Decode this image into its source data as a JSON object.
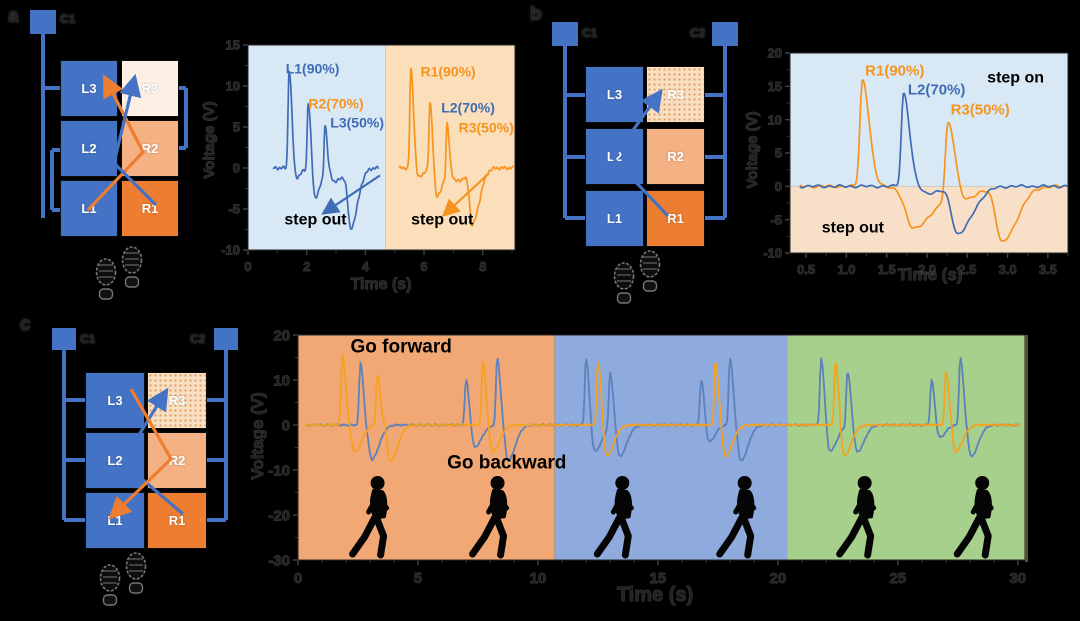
{
  "panels": {
    "a": {
      "label": "a",
      "connectors": [
        {
          "id": "C1",
          "label": "C1"
        }
      ],
      "tiles": [
        {
          "id": "L3",
          "row": 0,
          "col": 0,
          "fill": "blue"
        },
        {
          "id": "R3",
          "row": 0,
          "col": 1,
          "fill": "lightest"
        },
        {
          "id": "L2",
          "row": 1,
          "col": 0,
          "fill": "blue"
        },
        {
          "id": "R2",
          "row": 1,
          "col": 1,
          "fill": "light"
        },
        {
          "id": "L1",
          "row": 2,
          "col": 0,
          "fill": "blue"
        },
        {
          "id": "R1",
          "row": 2,
          "col": 1,
          "fill": "orange"
        }
      ],
      "footprints": true
    },
    "b": {
      "label": "b",
      "connectors": [
        {
          "id": "C1",
          "label": "C1"
        },
        {
          "id": "C2",
          "label": "C2"
        }
      ],
      "tiles": [
        {
          "id": "L3",
          "row": 0,
          "col": 0,
          "fill": "blue"
        },
        {
          "id": "R3",
          "row": 0,
          "col": 1,
          "fill": "dotted"
        },
        {
          "id": "L2",
          "row": 1,
          "col": 0,
          "fill": "blue"
        },
        {
          "id": "R2",
          "row": 1,
          "col": 1,
          "fill": "light"
        },
        {
          "id": "L1",
          "row": 2,
          "col": 0,
          "fill": "blue"
        },
        {
          "id": "R1",
          "row": 2,
          "col": 1,
          "fill": "orange"
        }
      ],
      "footprints": true
    },
    "c": {
      "label": "c",
      "connectors": [
        {
          "id": "C1",
          "label": "C1"
        },
        {
          "id": "C2",
          "label": "C2"
        }
      ],
      "tiles": [
        {
          "id": "L3",
          "row": 0,
          "col": 0,
          "fill": "blue"
        },
        {
          "id": "R3",
          "row": 0,
          "col": 1,
          "fill": "dotted"
        },
        {
          "id": "L2",
          "row": 1,
          "col": 0,
          "fill": "blue"
        },
        {
          "id": "R2",
          "row": 1,
          "col": 1,
          "fill": "light"
        },
        {
          "id": "L1",
          "row": 2,
          "col": 0,
          "fill": "blue"
        },
        {
          "id": "R1",
          "row": 2,
          "col": 1,
          "fill": "orange"
        }
      ],
      "footprints": true
    }
  },
  "colors": {
    "blue": "#4472C4",
    "orange": "#ED7D31",
    "light": "#F4B183",
    "lightest": "#FDEFE4",
    "dotted_bg": "#F8DFC1",
    "trace_blue": "#3E6CB5",
    "trace_orange": "#F6941D",
    "trace_blue_c": "#5C81BC",
    "bg_light_blue": "#D9E8F5",
    "bg_light_orange": "#FBDFBB",
    "bg_peach": "#F8E0C8",
    "bg_c_orange": "#F2A875",
    "bg_c_blue": "#8FAADC",
    "bg_c_green": "#A8D08D"
  },
  "chart_data": [
    {
      "type": "line",
      "title": "",
      "xlabel": "Time (s)",
      "ylabel": "Voltage (V)",
      "xlim": [
        0,
        9.1
      ],
      "ylim": [
        -10,
        15
      ],
      "xticks": [
        0,
        2,
        4,
        6,
        8
      ],
      "xtick_labels": [
        "0",
        "2",
        "4",
        "6",
        "8"
      ],
      "yticks": [
        15,
        10,
        5,
        0,
        -5,
        -10
      ],
      "ytick_labels": [
        "15",
        "10",
        "5",
        "0",
        "-5",
        "-10"
      ],
      "grid": false,
      "legend": "none",
      "regions": [
        {
          "axis": "x",
          "from": 0,
          "to": 4.68,
          "color": "#D9E8F5"
        },
        {
          "axis": "x",
          "from": 4.68,
          "to": 9.1,
          "color": "#FBDFBB"
        }
      ],
      "series": [
        {
          "name": "blue",
          "color": "#3E6CB5",
          "trange": [
            0.85,
            4.45
          ],
          "pulses": [
            [
              1.4,
              12,
              0.05
            ],
            [
              1.62,
              -1.3,
              0.09
            ],
            [
              2.05,
              8,
              0.045
            ],
            [
              2.28,
              -3.6,
              0.1
            ],
            [
              2.62,
              6,
              0.04
            ],
            [
              2.95,
              -1.6,
              0.18
            ],
            [
              3.5,
              -7,
              0.13
            ]
          ]
        },
        {
          "name": "orange",
          "color": "#F6941D",
          "trange": [
            5.15,
            9.05
          ],
          "pulses": [
            [
              5.55,
              12,
              0.05
            ],
            [
              5.78,
              -1.3,
              0.09
            ],
            [
              6.2,
              8,
              0.045
            ],
            [
              6.43,
              -3.6,
              0.1
            ],
            [
              6.78,
              6,
              0.04
            ],
            [
              7.1,
              -1.6,
              0.18
            ],
            [
              7.65,
              -6.5,
              0.13
            ]
          ]
        }
      ],
      "annotations": [
        {
          "text": "L1(90%)",
          "t": 2.2,
          "v": 12.0,
          "color": "#3E6CB5",
          "size": 14
        },
        {
          "text": "R2(70%)",
          "t": 3.0,
          "v": 7.7,
          "color": "#F6941D",
          "size": 14
        },
        {
          "text": "L3(50%)",
          "t": 3.72,
          "v": 5.4,
          "color": "#3E6CB5",
          "size": 14
        },
        {
          "text": "R1(90%)",
          "t": 6.82,
          "v": 11.6,
          "color": "#F6941D",
          "size": 14
        },
        {
          "text": "L2(70%)",
          "t": 7.5,
          "v": 7.2,
          "color": "#3E6CB5",
          "size": 14
        },
        {
          "text": "R3(50%)",
          "t": 8.12,
          "v": 4.8,
          "color": "#F6941D",
          "size": 14
        },
        {
          "text": "step out",
          "t": 2.3,
          "v": -6.4,
          "color": "#000000",
          "size": 16
        },
        {
          "text": "step out",
          "t": 6.62,
          "v": -6.4,
          "color": "#000000",
          "size": 16
        }
      ],
      "arrows": [
        {
          "x1": 4.5,
          "y1": -0.9,
          "x2": 2.62,
          "y2": -5.4,
          "color": "#3E6CB5"
        },
        {
          "x1": 8.2,
          "y1": -0.7,
          "x2": 6.72,
          "y2": -5.6,
          "color": "#F6941D"
        }
      ]
    },
    {
      "type": "line",
      "title": "",
      "xlabel": "Time (s)",
      "ylabel": "Voltage (V)",
      "xlim": [
        0.3,
        3.75
      ],
      "ylim": [
        -10,
        20
      ],
      "xticks": [
        0.5,
        1.0,
        1.5,
        2.0,
        2.5,
        3.0,
        3.5
      ],
      "xtick_labels": [
        "0.5",
        "1.0",
        "1.5",
        "2.0",
        "2.5",
        "3.0",
        "3.5"
      ],
      "yticks": [
        20,
        15,
        10,
        5,
        0,
        -5,
        -10
      ],
      "ytick_labels": [
        "20",
        "15",
        "10",
        "5",
        "0",
        "-5",
        "-10"
      ],
      "grid": false,
      "legend": "none",
      "regions": [
        {
          "axis": "y",
          "from": 0,
          "to": 20,
          "color": "#D9E8F5"
        },
        {
          "axis": "y",
          "from": -10,
          "to": 0,
          "color": "#F8E0C8"
        }
      ],
      "series": [
        {
          "name": "orange",
          "color": "#F6941D",
          "trange": [
            0.42,
            3.74
          ],
          "pulses": [
            [
              1.2,
              16,
              0.045
            ],
            [
              1.83,
              -6.2,
              0.14
            ],
            [
              2.26,
              11,
              0.045
            ],
            [
              2.45,
              -1.8,
              0.1
            ],
            [
              2.93,
              -8.3,
              0.1
            ]
          ]
        },
        {
          "name": "blue",
          "color": "#3E6CB5",
          "trange": [
            0.42,
            3.74
          ],
          "pulses": [
            [
              1.71,
              14,
              0.04
            ],
            [
              2.0,
              -1,
              0.1
            ],
            [
              2.38,
              -7,
              0.1
            ]
          ]
        }
      ],
      "annotations": [
        {
          "text": "R1(90%)",
          "t": 1.6,
          "v": 17.2,
          "color": "#F6941D",
          "size": 15
        },
        {
          "text": "L2(70%)",
          "t": 2.12,
          "v": 14.4,
          "color": "#3E6CB5",
          "size": 15
        },
        {
          "text": "R3(50%)",
          "t": 2.66,
          "v": 11.4,
          "color": "#F6941D",
          "size": 15
        },
        {
          "text": "step on",
          "t": 3.1,
          "v": 16.2,
          "color": "#000000",
          "size": 16
        },
        {
          "text": "step out",
          "t": 1.08,
          "v": -6.3,
          "color": "#000000",
          "size": 16
        }
      ],
      "arrows": []
    },
    {
      "type": "line",
      "title": "",
      "xlabel": "Time (s)",
      "ylabel": "Voltage (V)",
      "xlim": [
        0,
        30.3
      ],
      "ylim": [
        -30,
        20
      ],
      "xticks": [
        0,
        5,
        10,
        15,
        20,
        25,
        30
      ],
      "xtick_labels": [
        "0",
        "5",
        "10",
        "15",
        "20",
        "25",
        "30"
      ],
      "yticks": [
        20,
        10,
        0,
        -10,
        -20,
        -30
      ],
      "ytick_labels": [
        "20",
        "10",
        "0",
        "-10",
        "-20",
        "-30"
      ],
      "grid": false,
      "legend": "none",
      "regions": [
        {
          "axis": "x",
          "from": 0,
          "to": 10.7,
          "color": "#F2A875"
        },
        {
          "axis": "x",
          "from": 10.7,
          "to": 20.4,
          "color": "#8FAADC"
        },
        {
          "axis": "x",
          "from": 20.4,
          "to": 30.3,
          "color": "#A8D08D"
        }
      ],
      "series": [
        {
          "name": "blue",
          "color": "#5C81BC",
          "trange": [
            0.3,
            30.1
          ],
          "pulses": [
            [
              2.6,
              14,
              0.07
            ],
            [
              2.85,
              -2,
              0.1
            ],
            [
              3.1,
              -7,
              0.16
            ],
            [
              7.0,
              10,
              0.07
            ],
            [
              7.35,
              -5,
              0.16
            ],
            [
              8.3,
              15,
              0.07
            ],
            [
              8.75,
              -8,
              0.16
            ],
            [
              12.0,
              15,
              0.07
            ],
            [
              12.35,
              -6,
              0.16
            ],
            [
              13.0,
              12,
              0.07
            ],
            [
              13.4,
              -7,
              0.16
            ],
            [
              16.8,
              10,
              0.07
            ],
            [
              17.1,
              -4,
              0.14
            ],
            [
              18.0,
              15,
              0.07
            ],
            [
              18.45,
              -8,
              0.16
            ],
            [
              21.8,
              15,
              0.07
            ],
            [
              22.15,
              -6,
              0.16
            ],
            [
              22.9,
              12,
              0.07
            ],
            [
              23.3,
              -6,
              0.16
            ],
            [
              26.4,
              10,
              0.07
            ],
            [
              26.7,
              -3,
              0.14
            ],
            [
              27.6,
              15,
              0.07
            ],
            [
              28.05,
              -7,
              0.16
            ]
          ]
        },
        {
          "name": "orange",
          "color": "#F6A21E",
          "trange": [
            0.3,
            30.1
          ],
          "pulses": [
            [
              1.85,
              16,
              0.07
            ],
            [
              2.35,
              -6,
              0.16
            ],
            [
              3.3,
              11,
              0.07
            ],
            [
              3.85,
              -8,
              0.16
            ],
            [
              7.7,
              14,
              0.07
            ],
            [
              8.1,
              -6,
              0.16
            ],
            [
              12.5,
              14,
              0.07
            ],
            [
              12.85,
              -7,
              0.16
            ],
            [
              17.4,
              14,
              0.07
            ],
            [
              17.8,
              -7,
              0.16
            ],
            [
              22.4,
              14,
              0.07
            ],
            [
              22.75,
              -7,
              0.16
            ],
            [
              27.0,
              12,
              0.07
            ],
            [
              27.4,
              -6,
              0.16
            ]
          ]
        }
      ],
      "annotations": [
        {
          "text": "Go forward",
          "t": 4.3,
          "v": 17.2,
          "color": "#000000",
          "size": 19
        },
        {
          "text": "Go backward",
          "t": 8.7,
          "v": -8.6,
          "color": "#000000",
          "size": 19
        }
      ],
      "arrows": [],
      "persons": [
        {
          "t": 3.4
        },
        {
          "t": 8.4
        },
        {
          "t": 13.6
        },
        {
          "t": 18.7
        },
        {
          "t": 23.7
        },
        {
          "t": 28.6
        }
      ]
    }
  ]
}
